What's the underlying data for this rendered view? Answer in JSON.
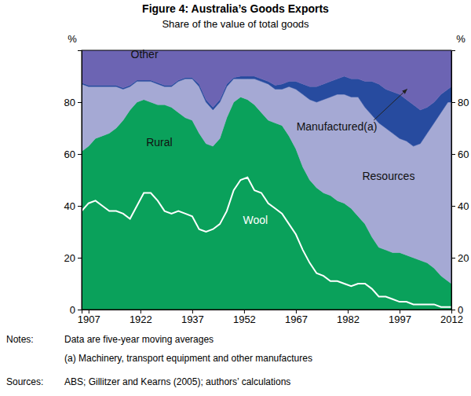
{
  "chart_data": {
    "type": "area",
    "stacked": true,
    "title": "Figure 4: Australia’s Goods Exports",
    "subtitle": "Share of the value of total goods",
    "ylabel": "%",
    "x": [
      1905,
      1907,
      1909,
      1911,
      1913,
      1915,
      1917,
      1919,
      1921,
      1923,
      1925,
      1927,
      1929,
      1931,
      1933,
      1935,
      1937,
      1939,
      1941,
      1943,
      1945,
      1947,
      1949,
      1951,
      1953,
      1955,
      1957,
      1959,
      1961,
      1963,
      1965,
      1967,
      1969,
      1971,
      1973,
      1975,
      1977,
      1979,
      1981,
      1983,
      1985,
      1987,
      1989,
      1991,
      1993,
      1995,
      1997,
      1999,
      2001,
      2003,
      2005,
      2007,
      2009,
      2011,
      2012
    ],
    "xlim": [
      1905,
      2012
    ],
    "xticks": [
      1907,
      1922,
      1937,
      1952,
      1967,
      1982,
      1997,
      2012
    ],
    "ylim": [
      0,
      100
    ],
    "yticks": [
      0,
      20,
      40,
      60,
      80
    ],
    "grid": false,
    "series": [
      {
        "name": "Wool",
        "color": "#0aa15b",
        "values": [
          38,
          41,
          42,
          40,
          38,
          38,
          37,
          35,
          40,
          45,
          45,
          42,
          38,
          37,
          38,
          37,
          36,
          31,
          30,
          31,
          33,
          38,
          46,
          50,
          51,
          46,
          45,
          41,
          39,
          37,
          33,
          29,
          23,
          18,
          14,
          13,
          11,
          11,
          10,
          9,
          10,
          10,
          8,
          5,
          5,
          4,
          3,
          3,
          2,
          2,
          2,
          2,
          1,
          1,
          1
        ]
      },
      {
        "name": "Rural",
        "color": "#0aa15b",
        "values": [
          23,
          22,
          24,
          27,
          30,
          32,
          36,
          42,
          40,
          36,
          35,
          37,
          41,
          41,
          38,
          37,
          37,
          37,
          34,
          32,
          33,
          36,
          34,
          32,
          30,
          33,
          31,
          32,
          33,
          34,
          34,
          33,
          32,
          32,
          33,
          32,
          33,
          31,
          31,
          30,
          26,
          23,
          20,
          19,
          18,
          18,
          19,
          18,
          18,
          17,
          16,
          14,
          12,
          10,
          9
        ]
      },
      {
        "name": "Resources",
        "color": "#a5a9d4",
        "values": [
          26,
          23,
          20,
          19,
          18,
          16,
          12,
          9,
          8,
          7,
          8,
          8,
          7,
          8,
          12,
          15,
          16,
          18,
          16,
          14,
          14,
          12,
          9,
          7,
          8,
          10,
          12,
          14,
          13,
          14,
          19,
          23,
          28,
          31,
          33,
          36,
          38,
          41,
          42,
          43,
          46,
          45,
          47,
          48,
          47,
          46,
          44,
          44,
          43,
          45,
          50,
          56,
          63,
          69,
          70
        ]
      },
      {
        "name": "Manufactured(a)",
        "color": "#274b9f",
        "values": [
          0.5,
          0.5,
          0.5,
          0.5,
          0.5,
          0.5,
          0.5,
          0.5,
          0.5,
          0.5,
          0.5,
          0.5,
          0.5,
          0.5,
          0.5,
          0.5,
          0.5,
          1,
          1,
          1,
          1,
          1,
          0.5,
          1,
          1,
          1,
          1,
          1,
          1.5,
          2,
          2,
          3,
          4,
          5,
          6,
          6,
          6,
          6,
          7,
          7,
          7,
          10,
          13,
          15,
          15,
          16,
          17,
          16,
          16,
          13,
          10,
          8,
          7,
          5,
          6
        ]
      },
      {
        "name": "Other",
        "color": "#6c64b3",
        "values": [
          12.5,
          13.5,
          13.5,
          13.5,
          13.5,
          13.5,
          14.5,
          13.5,
          11.5,
          11.5,
          11.5,
          12.5,
          13.5,
          13.5,
          11.5,
          10.5,
          10.5,
          13,
          19,
          22,
          19,
          13,
          10.5,
          10,
          10,
          10,
          11,
          12,
          13.5,
          13,
          12,
          12,
          13,
          14,
          14,
          13,
          12,
          11,
          10,
          11,
          11,
          12,
          12,
          13,
          15,
          16,
          17,
          19,
          21,
          23,
          22,
          20,
          17,
          15,
          14
        ]
      }
    ],
    "notes": {
      "label": "Notes:",
      "lines": [
        "Data are five-year moving averages",
        "(a) Machinery, transport equipment and other manufactures"
      ]
    },
    "sources": {
      "label": "Sources:",
      "text": "ABS; Gillitzer and Kearns (2005); authors’ calculations"
    }
  }
}
